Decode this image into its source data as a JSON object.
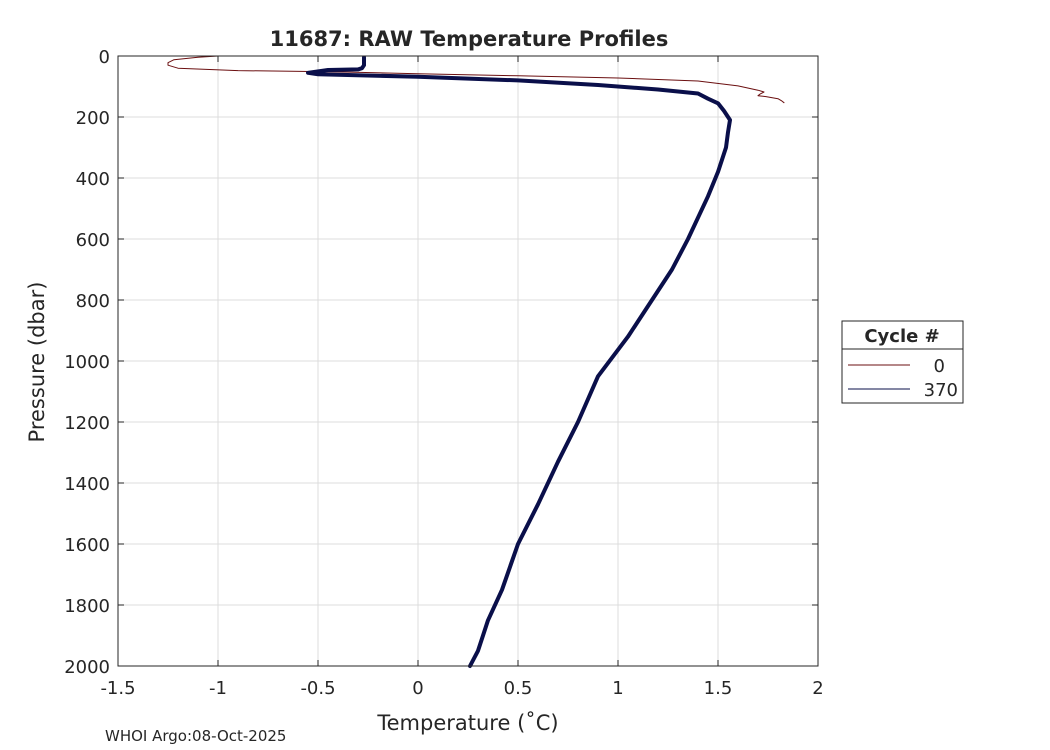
{
  "chart_data": {
    "type": "line",
    "title": "11687: RAW Temperature Profiles",
    "xlabel": "Temperature (˚C)",
    "ylabel": "Pressure (dbar)",
    "xlim": [
      -1.5,
      2
    ],
    "ylim": [
      0,
      2000
    ],
    "y_reversed": true,
    "grid": true,
    "x_ticks": [
      -1.5,
      -1,
      -0.5,
      0,
      0.5,
      1,
      1.5,
      2
    ],
    "x_tick_labels": [
      "-1.5",
      "-1",
      "-0.5",
      "0",
      "0.5",
      "1",
      "1.5",
      "2"
    ],
    "y_ticks": [
      0,
      200,
      400,
      600,
      800,
      1000,
      1200,
      1400,
      1600,
      1800,
      2000
    ],
    "y_tick_labels": [
      "0",
      "200",
      "400",
      "600",
      "800",
      "1000",
      "1200",
      "1400",
      "1600",
      "1800",
      "2000"
    ],
    "legend": {
      "title": "Cycle #",
      "placement": "outside-right"
    },
    "series": [
      {
        "name": "0",
        "color": "#6b0f10",
        "thick": false,
        "points": [
          [
            -1.0,
            0
          ],
          [
            -1.1,
            4
          ],
          [
            -1.22,
            12
          ],
          [
            -1.25,
            22
          ],
          [
            -1.25,
            30
          ],
          [
            -1.2,
            40
          ],
          [
            -0.9,
            48
          ],
          [
            -0.4,
            52
          ],
          [
            0.0,
            58
          ],
          [
            0.5,
            65
          ],
          [
            1.0,
            72
          ],
          [
            1.4,
            82
          ],
          [
            1.6,
            98
          ],
          [
            1.7,
            112
          ],
          [
            1.73,
            118
          ],
          [
            1.71,
            125
          ],
          [
            1.7,
            130
          ],
          [
            1.74,
            133
          ],
          [
            1.8,
            140
          ],
          [
            1.82,
            148
          ],
          [
            1.83,
            153
          ]
        ]
      },
      {
        "name": "370",
        "color": "#0a0f4a",
        "thick": true,
        "points": [
          [
            -0.27,
            5
          ],
          [
            -0.27,
            30
          ],
          [
            -0.28,
            40
          ],
          [
            -0.3,
            44
          ],
          [
            -0.45,
            46
          ],
          [
            -0.55,
            55
          ],
          [
            -0.5,
            60
          ],
          [
            0.0,
            68
          ],
          [
            0.5,
            80
          ],
          [
            0.9,
            95
          ],
          [
            1.2,
            110
          ],
          [
            1.4,
            123
          ],
          [
            1.45,
            140
          ],
          [
            1.5,
            155
          ],
          [
            1.53,
            180
          ],
          [
            1.56,
            210
          ],
          [
            1.55,
            250
          ],
          [
            1.54,
            300
          ],
          [
            1.5,
            380
          ],
          [
            1.45,
            460
          ],
          [
            1.35,
            600
          ],
          [
            1.27,
            700
          ],
          [
            1.17,
            800
          ],
          [
            1.05,
            920
          ],
          [
            0.9,
            1050
          ],
          [
            0.8,
            1200
          ],
          [
            0.7,
            1330
          ],
          [
            0.6,
            1470
          ],
          [
            0.5,
            1600
          ],
          [
            0.42,
            1750
          ],
          [
            0.35,
            1850
          ],
          [
            0.3,
            1950
          ],
          [
            0.26,
            2000
          ]
        ]
      }
    ]
  },
  "footer": {
    "watermark": "WHOI Argo:08-Oct-2025"
  }
}
